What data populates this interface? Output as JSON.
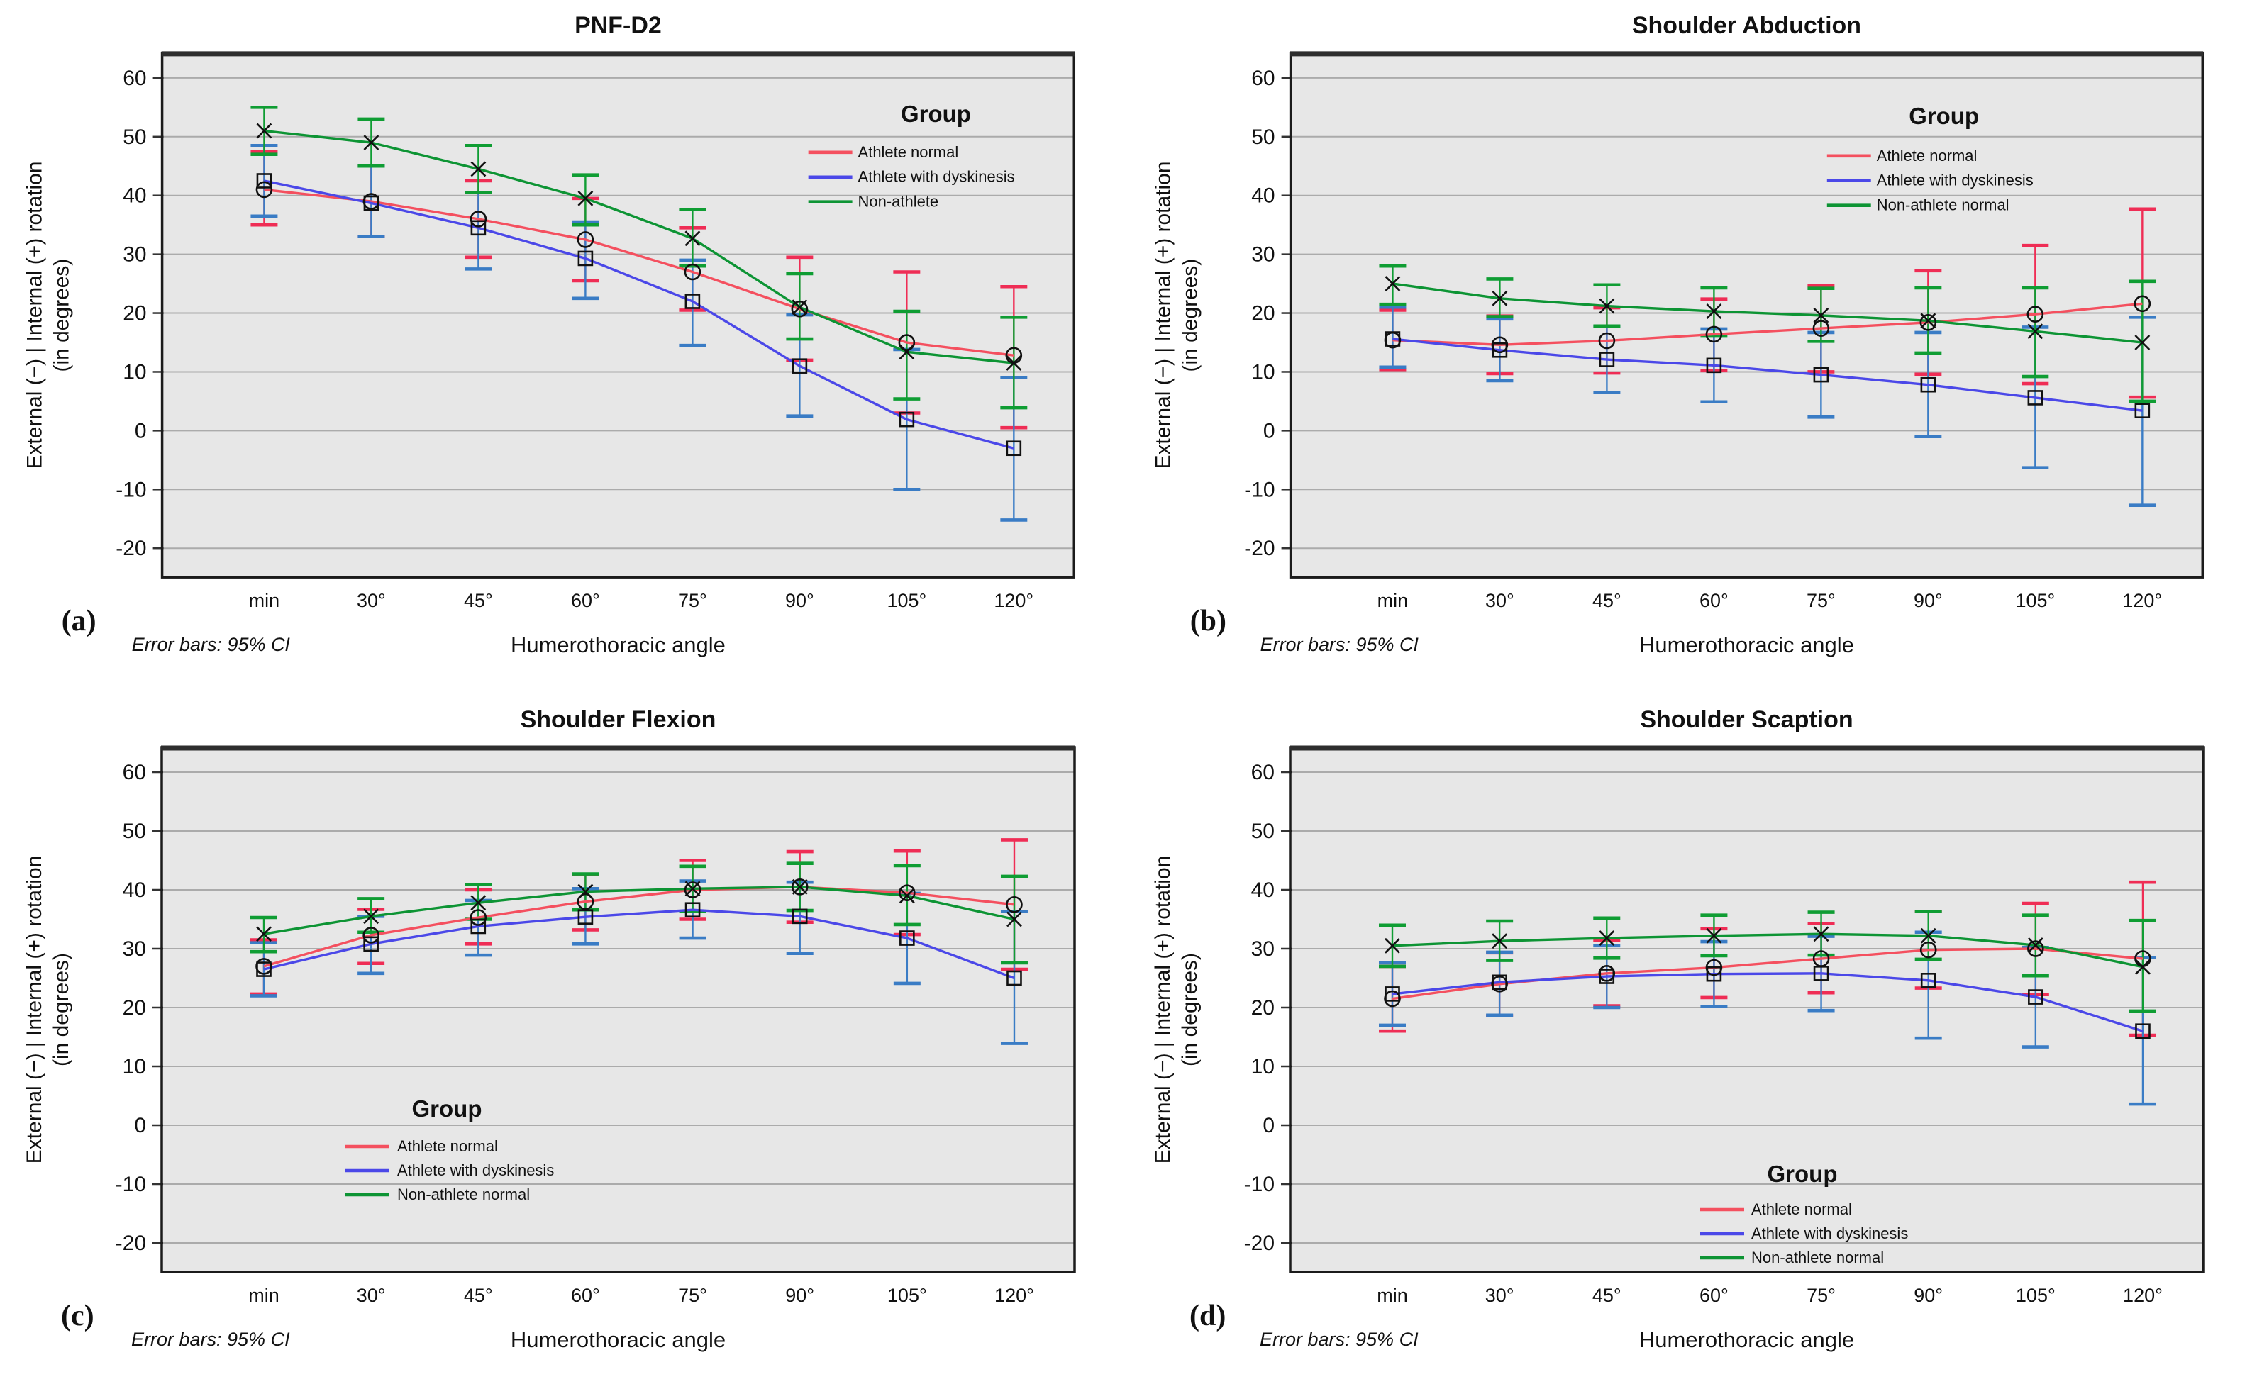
{
  "colors": {
    "background": "#ffffff",
    "plot_bg": "#e7e7e7",
    "grid": "#ababab",
    "frame": "#1b1b1b",
    "marker": "#111111",
    "athlete_normal": "#f4505f",
    "athlete_normal_error": "#ef2d55",
    "dyskinesis": "#4b48e8",
    "dyskinesis_error": "#3a7cc5",
    "non_athlete": "#0d9434",
    "non_athlete_error": "#0f9d33"
  },
  "chart_data": [
    {
      "id": "a",
      "label": "(a)",
      "type": "line",
      "title": "PNF-D2",
      "xlabel": "Humerothoracic angle",
      "footnote": "Error bars: 95% CI",
      "ylabel_line1": "External (−) | Internal (+) rotation",
      "ylabel_line2": "(in degrees)",
      "categories": [
        "min",
        "30°",
        "45°",
        "60°",
        "75°",
        "90°",
        "105°",
        "120°"
      ],
      "yticks": [
        60,
        50,
        40,
        30,
        20,
        10,
        0,
        -10,
        -20
      ],
      "ylim": [
        -25,
        64
      ],
      "legend": {
        "title": "Group",
        "position": "top-right",
        "cx": 1320,
        "title_y": 172,
        "swatch_x": 1140,
        "text_x": 1210,
        "row_ys": [
          222,
          257,
          292
        ]
      },
      "series": [
        {
          "name": "Athlete normal",
          "marker": "circle",
          "color": "#f4505f",
          "error_color": "#ef2d55",
          "values": [
            41,
            39,
            36,
            32.5,
            27,
            20.7,
            15,
            12.8
          ],
          "ci_low": [
            35,
            33,
            29.5,
            25.5,
            20.5,
            12,
            3,
            0.5
          ],
          "ci_high": [
            47.5,
            45,
            42.5,
            39.5,
            34.5,
            29.5,
            27,
            24.5
          ]
        },
        {
          "name": "Athlete with dyskinesis",
          "marker": "square",
          "color": "#4b48e8",
          "error_color": "#3a7cc5",
          "values": [
            42.5,
            38.7,
            34.5,
            29.3,
            22,
            11,
            1.9,
            -3
          ],
          "ci_low": [
            36.5,
            33,
            27.5,
            22.5,
            14.5,
            2.5,
            -10,
            -15.2
          ],
          "ci_high": [
            48.5,
            45,
            40.5,
            35.5,
            29,
            19.7,
            13.8,
            9
          ]
        },
        {
          "name": "Non-athlete",
          "marker": "x",
          "color": "#0d9434",
          "error_color": "#0f9d33",
          "values": [
            51,
            49,
            44.5,
            39.5,
            32.7,
            21,
            13.4,
            11.5
          ],
          "ci_low": [
            47,
            45,
            40.5,
            35,
            28,
            15.6,
            5.4,
            3.9
          ],
          "ci_high": [
            55,
            53,
            48.5,
            43.5,
            37.6,
            26.7,
            20.3,
            19.3
          ]
        }
      ]
    },
    {
      "id": "b",
      "label": "(b)",
      "type": "line",
      "title": "Shoulder Abduction",
      "xlabel": "Humerothoracic angle",
      "footnote": "Error bars: 95% CI",
      "ylabel_line1": "External (−) | Internal (+) rotation",
      "ylabel_line2": "(in degrees)",
      "categories": [
        "min",
        "30°",
        "45°",
        "60°",
        "75°",
        "90°",
        "105°",
        "120°"
      ],
      "yticks": [
        60,
        50,
        40,
        30,
        20,
        10,
        0,
        -10,
        -20
      ],
      "ylim": [
        -25,
        64
      ],
      "legend": {
        "title": "Group",
        "position": "top-right",
        "cx": 1150,
        "title_y": 175,
        "swatch_x": 985,
        "text_x": 1055,
        "row_ys": [
          227,
          262,
          297
        ]
      },
      "series": [
        {
          "name": "Athlete normal",
          "marker": "circle",
          "color": "#f4505f",
          "error_color": "#ef2d55",
          "values": [
            15.4,
            14.6,
            15.3,
            16.4,
            17.4,
            18.4,
            19.8,
            21.6
          ],
          "ci_low": [
            10.4,
            9.7,
            9.8,
            10.2,
            10,
            9.6,
            8,
            5.7
          ],
          "ci_high": [
            20.5,
            19.5,
            20.9,
            22.4,
            24.7,
            27.2,
            31.5,
            37.7
          ]
        },
        {
          "name": "Athlete with dyskinesis",
          "marker": "square",
          "color": "#4b48e8",
          "error_color": "#3a7cc5",
          "values": [
            15.6,
            13.7,
            12.1,
            11.1,
            9.5,
            7.8,
            5.6,
            3.4
          ],
          "ci_low": [
            10.8,
            8.5,
            6.5,
            4.9,
            2.3,
            -1,
            -6.3,
            -12.7
          ],
          "ci_high": [
            21,
            19,
            17.7,
            17.3,
            16.7,
            16.7,
            17.6,
            19.3
          ]
        },
        {
          "name": "Non-athlete normal",
          "marker": "x",
          "color": "#0d9434",
          "error_color": "#0f9d33",
          "values": [
            25,
            22.5,
            21.2,
            20.3,
            19.6,
            18.7,
            16.9,
            15
          ],
          "ci_low": [
            21.5,
            19.4,
            17.8,
            16.2,
            15.2,
            13.2,
            9.2,
            5
          ],
          "ci_high": [
            28,
            25.8,
            24.8,
            24.3,
            24.2,
            24.3,
            24.3,
            25.4
          ]
        }
      ]
    },
    {
      "id": "c",
      "label": "(c)",
      "type": "line",
      "title": "Shoulder Flexion",
      "xlabel": "Humerothoracic angle",
      "footnote": "Error bars: 95% CI",
      "ylabel_line1": "External (−) | Internal (+) rotation",
      "ylabel_line2": "(in degrees)",
      "categories": [
        "min",
        "30°",
        "45°",
        "60°",
        "75°",
        "90°",
        "105°",
        "120°"
      ],
      "yticks": [
        60,
        50,
        40,
        30,
        20,
        10,
        0,
        -10,
        -20
      ],
      "ylim": [
        -25,
        64
      ],
      "legend": {
        "title": "Group",
        "position": "bottom-left",
        "cx": 630,
        "title_y": 596,
        "swatch_x": 487,
        "text_x": 560,
        "row_ys": [
          645,
          679,
          713
        ]
      },
      "series": [
        {
          "name": "Athlete normal",
          "marker": "circle",
          "color": "#f4505f",
          "error_color": "#ef2d55",
          "values": [
            27,
            32.3,
            35.3,
            38,
            40,
            40.5,
            39.5,
            37.5
          ],
          "ci_low": [
            22.3,
            27.5,
            30.8,
            33.2,
            35,
            34.5,
            32.4,
            26.5
          ],
          "ci_high": [
            31.5,
            36.7,
            40,
            42.6,
            45,
            46.5,
            46.6,
            48.5
          ]
        },
        {
          "name": "Athlete with dyskinesis",
          "marker": "square",
          "color": "#4b48e8",
          "error_color": "#3a7cc5",
          "values": [
            26.5,
            30.8,
            33.8,
            35.4,
            36.6,
            35.5,
            31.8,
            25
          ],
          "ci_low": [
            22,
            25.8,
            28.9,
            30.8,
            31.8,
            29.2,
            24.1,
            13.9
          ],
          "ci_high": [
            31,
            35.5,
            38.2,
            40.2,
            41.5,
            41.3,
            39.4,
            36.3
          ]
        },
        {
          "name": "Non-athlete normal",
          "marker": "x",
          "color": "#0d9434",
          "error_color": "#0f9d33",
          "values": [
            32.5,
            35.5,
            37.8,
            39.7,
            40.2,
            40.5,
            39,
            35
          ],
          "ci_low": [
            29.5,
            32.8,
            35,
            36.6,
            36.3,
            36.5,
            34.1,
            27.6
          ],
          "ci_high": [
            35.3,
            38.5,
            40.9,
            42.7,
            44,
            44.5,
            44.1,
            42.3
          ]
        }
      ]
    },
    {
      "id": "d",
      "label": "(d)",
      "type": "line",
      "title": "Shoulder Scaption",
      "xlabel": "Humerothoracic angle",
      "footnote": "Error bars: 95% CI",
      "ylabel_line1": "External (−) | Internal (+) rotation",
      "ylabel_line2": "(in degrees)",
      "categories": [
        "min",
        "30°",
        "45°",
        "60°",
        "75°",
        "90°",
        "105°",
        "120°"
      ],
      "yticks": [
        60,
        50,
        40,
        30,
        20,
        10,
        0,
        -10,
        -20
      ],
      "ylim": [
        -25,
        64
      ],
      "legend": {
        "title": "Group",
        "position": "bottom-left",
        "cx": 950,
        "title_y": 688,
        "swatch_x": 806,
        "text_x": 878,
        "row_ys": [
          734,
          768,
          802
        ]
      },
      "series": [
        {
          "name": "Athlete normal",
          "marker": "circle",
          "color": "#f4505f",
          "error_color": "#ef2d55",
          "values": [
            21.5,
            24,
            25.8,
            26.8,
            28.3,
            29.8,
            30,
            28.3
          ],
          "ci_low": [
            16,
            18.6,
            20.3,
            21.7,
            22.5,
            23.3,
            22.2,
            15.3
          ],
          "ci_high": [
            27,
            29.3,
            31.4,
            33.4,
            34.3,
            36.3,
            37.7,
            41.3
          ]
        },
        {
          "name": "Athlete with dyskinesis",
          "marker": "square",
          "color": "#4b48e8",
          "error_color": "#3a7cc5",
          "values": [
            22.3,
            24.3,
            25.3,
            25.7,
            25.8,
            24.6,
            21.8,
            16
          ],
          "ci_low": [
            17,
            18.7,
            20,
            20.2,
            19.5,
            14.8,
            13.3,
            3.6
          ],
          "ci_high": [
            27.6,
            29.4,
            30.5,
            31.2,
            32.1,
            32.8,
            30.2,
            28.5
          ]
        },
        {
          "name": "Non-athlete normal",
          "marker": "x",
          "color": "#0d9434",
          "error_color": "#0f9d33",
          "values": [
            30.5,
            31.3,
            31.8,
            32.2,
            32.5,
            32.2,
            30.6,
            26.9
          ],
          "ci_low": [
            27,
            28,
            28.4,
            28.8,
            28.9,
            28.2,
            25.4,
            19.4
          ],
          "ci_high": [
            34,
            34.7,
            35.2,
            35.7,
            36.2,
            36.3,
            35.7,
            34.8
          ]
        }
      ]
    }
  ]
}
